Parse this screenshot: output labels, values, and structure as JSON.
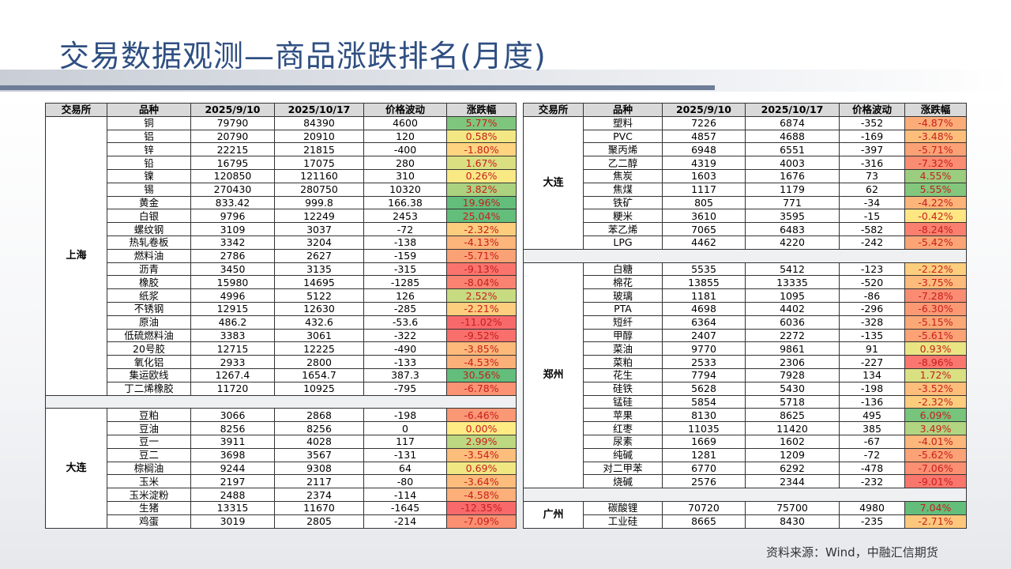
{
  "header": {
    "title": "交易数据观测—商品涨跌排名(月度)"
  },
  "tables": [
    {
      "headers": [
        "交易所",
        "品种",
        "2025/9/10",
        "2025/10/17",
        "价格波动",
        "涨跌幅"
      ],
      "groups": [
        {
          "exchange": "上海",
          "rows": [
            [
              "铜",
              "79790",
              "84390",
              "4600",
              "5.77%"
            ],
            [
              "铝",
              "20790",
              "20910",
              "120",
              "0.58%"
            ],
            [
              "锌",
              "22215",
              "21815",
              "-400",
              "-1.80%"
            ],
            [
              "铅",
              "16795",
              "17075",
              "280",
              "1.67%"
            ],
            [
              "镍",
              "120850",
              "121160",
              "310",
              "0.26%"
            ],
            [
              "锡",
              "270430",
              "280750",
              "10320",
              "3.82%"
            ],
            [
              "黄金",
              "833.42",
              "999.8",
              "166.38",
              "19.96%"
            ],
            [
              "白银",
              "9796",
              "12249",
              "2453",
              "25.04%"
            ],
            [
              "螺纹钢",
              "3109",
              "3037",
              "-72",
              "-2.32%"
            ],
            [
              "热轧卷板",
              "3342",
              "3204",
              "-138",
              "-4.13%"
            ],
            [
              "燃料油",
              "2786",
              "2627",
              "-159",
              "-5.71%"
            ],
            [
              "沥青",
              "3450",
              "3135",
              "-315",
              "-9.13%"
            ],
            [
              "橡胶",
              "15980",
              "14695",
              "-1285",
              "-8.04%"
            ],
            [
              "纸浆",
              "4996",
              "5122",
              "126",
              "2.52%"
            ],
            [
              "不锈钢",
              "12915",
              "12630",
              "-285",
              "-2.21%"
            ],
            [
              "原油",
              "486.2",
              "432.6",
              "-53.6",
              "-11.02%"
            ],
            [
              "低硫燃料油",
              "3383",
              "3061",
              "-322",
              "-9.52%"
            ],
            [
              "20号胶",
              "12715",
              "12225",
              "-490",
              "-3.85%"
            ],
            [
              "氧化铝",
              "2933",
              "2800",
              "-133",
              "-4.53%"
            ],
            [
              "集运欧线",
              "1267.4",
              "1654.7",
              "387.3",
              "30.56%"
            ],
            [
              "丁二烯橡胶",
              "11720",
              "10925",
              "-795",
              "-6.78%"
            ]
          ]
        },
        {
          "exchange": "大连",
          "rows": [
            [
              "豆粕",
              "3066",
              "2868",
              "-198",
              "-6.46%"
            ],
            [
              "豆油",
              "8256",
              "8256",
              "0",
              "0.00%"
            ],
            [
              "豆一",
              "3911",
              "4028",
              "117",
              "2.99%"
            ],
            [
              "豆二",
              "3698",
              "3567",
              "-131",
              "-3.54%"
            ],
            [
              "棕榈油",
              "9244",
              "9308",
              "64",
              "0.69%"
            ],
            [
              "玉米",
              "2197",
              "2117",
              "-80",
              "-3.64%"
            ],
            [
              "玉米淀粉",
              "2488",
              "2374",
              "-114",
              "-4.58%"
            ],
            [
              "生猪",
              "13315",
              "11670",
              "-1645",
              "-12.35%"
            ],
            [
              "鸡蛋",
              "3019",
              "2805",
              "-214",
              "-7.09%"
            ]
          ]
        }
      ]
    },
    {
      "headers": [
        "交易所",
        "品种",
        "2025/9/10",
        "2025/10/17",
        "价格波动",
        "涨跌幅"
      ],
      "groups": [
        {
          "exchange": "大连",
          "rows": [
            [
              "塑料",
              "7226",
              "6874",
              "-352",
              "-4.87%"
            ],
            [
              "PVC",
              "4857",
              "4688",
              "-169",
              "-3.48%"
            ],
            [
              "聚丙烯",
              "6948",
              "6551",
              "-397",
              "-5.71%"
            ],
            [
              "乙二醇",
              "4319",
              "4003",
              "-316",
              "-7.32%"
            ],
            [
              "焦炭",
              "1603",
              "1676",
              "73",
              "4.55%"
            ],
            [
              "焦煤",
              "1117",
              "1179",
              "62",
              "5.55%"
            ],
            [
              "铁矿",
              "805",
              "771",
              "-34",
              "-4.22%"
            ],
            [
              "粳米",
              "3610",
              "3595",
              "-15",
              "-0.42%"
            ],
            [
              "苯乙烯",
              "7065",
              "6483",
              "-582",
              "-8.24%"
            ],
            [
              "LPG",
              "4462",
              "4220",
              "-242",
              "-5.42%"
            ]
          ]
        },
        {
          "exchange": "郑州",
          "rows": [
            [
              "白糖",
              "5535",
              "5412",
              "-123",
              "-2.22%"
            ],
            [
              "棉花",
              "13855",
              "13335",
              "-520",
              "-3.75%"
            ],
            [
              "玻璃",
              "1181",
              "1095",
              "-86",
              "-7.28%"
            ],
            [
              "PTA",
              "4698",
              "4402",
              "-296",
              "-6.30%"
            ],
            [
              "短纤",
              "6364",
              "6036",
              "-328",
              "-5.15%"
            ],
            [
              "甲醇",
              "2407",
              "2272",
              "-135",
              "-5.61%"
            ],
            [
              "菜油",
              "9770",
              "9861",
              "91",
              "0.93%"
            ],
            [
              "菜粕",
              "2533",
              "2306",
              "-227",
              "-8.96%"
            ],
            [
              "花生",
              "7794",
              "7928",
              "134",
              "1.72%"
            ],
            [
              "硅铁",
              "5628",
              "5430",
              "-198",
              "-3.52%"
            ],
            [
              "锰硅",
              "5854",
              "5718",
              "-136",
              "-2.32%"
            ],
            [
              "苹果",
              "8130",
              "8625",
              "495",
              "6.09%"
            ],
            [
              "红枣",
              "11035",
              "11420",
              "385",
              "3.49%"
            ],
            [
              "尿素",
              "1669",
              "1602",
              "-67",
              "-4.01%"
            ],
            [
              "纯碱",
              "1281",
              "1209",
              "-72",
              "-5.62%"
            ],
            [
              "对二甲苯",
              "6770",
              "6292",
              "-478",
              "-7.06%"
            ],
            [
              "烧碱",
              "2576",
              "2344",
              "-232",
              "-9.01%"
            ]
          ]
        },
        {
          "exchange": "广州",
          "rows": [
            [
              "碳酸锂",
              "70720",
              "75700",
              "4980",
              "7.04%"
            ],
            [
              "工业硅",
              "8665",
              "8430",
              "-235",
              "-2.71%"
            ]
          ]
        }
      ]
    }
  ],
  "footer": {
    "source": "资料来源：Wind，中融汇信期货"
  }
}
